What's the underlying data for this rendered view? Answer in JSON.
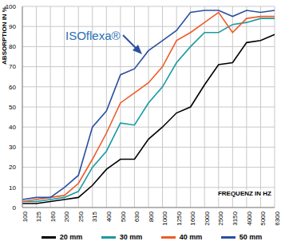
{
  "chart_data": {
    "type": "line",
    "y_label": "ABSORPTION IN %",
    "x_label": "FREQUENZ IN HZ",
    "annotation": "ISOflexa®",
    "categories": [
      "100",
      "125",
      "160",
      "200",
      "250",
      "315",
      "400",
      "500",
      "630",
      "800",
      "1000",
      "1250",
      "1600",
      "2000",
      "2500",
      "3150",
      "4000",
      "5000",
      "6300"
    ],
    "series": [
      {
        "name": "20 mm",
        "color": "#000000",
        "values": [
          2,
          2,
          3,
          4,
          5,
          11,
          19,
          24,
          24,
          34,
          40,
          47,
          50,
          61,
          71,
          72,
          82,
          83,
          86
        ]
      },
      {
        "name": "30 mm",
        "color": "#1a9aa0",
        "values": [
          3,
          3,
          4,
          5,
          8,
          20,
          28,
          42,
          41,
          52,
          60,
          72,
          80,
          87,
          87,
          91,
          92,
          94,
          94
        ]
      },
      {
        "name": "40 mm",
        "color": "#f05a28",
        "values": [
          3,
          4,
          5,
          6,
          12,
          24,
          37,
          52,
          57,
          62,
          70,
          83,
          87,
          92,
          97,
          87,
          94,
          95,
          95
        ]
      },
      {
        "name": "50 mm",
        "color": "#2b4fa0",
        "values": [
          4,
          5,
          5,
          10,
          16,
          40,
          48,
          66,
          69,
          78,
          83,
          88,
          97,
          98,
          98,
          95,
          98,
          97,
          98
        ]
      }
    ],
    "ylim": [
      0,
      100
    ],
    "yticks": [
      0,
      10,
      20,
      30,
      40,
      50,
      60,
      70,
      80,
      90,
      100
    ],
    "grid": true,
    "legend": "bottom"
  }
}
